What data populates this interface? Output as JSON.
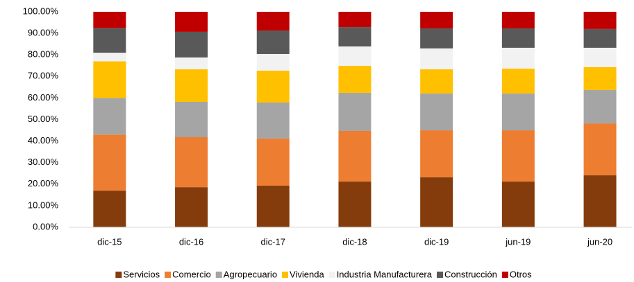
{
  "chart_data": {
    "type": "stacked_bar",
    "categories": [
      "dic-15",
      "dic-16",
      "dic-17",
      "dic-18",
      "dic-19",
      "jun-19",
      "jun-20"
    ],
    "series": [
      {
        "name": "Servicios",
        "color": "#843c0c",
        "values": [
          17,
          18.6,
          19.3,
          21.2,
          23.2,
          21.2,
          24.1
        ]
      },
      {
        "name": "Comercio",
        "color": "#ed7d31",
        "values": [
          26,
          23.2,
          21.9,
          23.5,
          21.8,
          23.8,
          24.1
        ]
      },
      {
        "name": "Agropecuario",
        "color": "#a5a5a5",
        "values": [
          17,
          16.4,
          16.7,
          17.7,
          17.1,
          17.1,
          15.5
        ]
      },
      {
        "name": "Vivienda",
        "color": "#ffc000",
        "values": [
          17,
          15.1,
          14.8,
          12.5,
          11.2,
          11.5,
          10.6
        ]
      },
      {
        "name": "Industria Manufacturera",
        "color": "#f2f2f2",
        "values": [
          4,
          5.5,
          7.7,
          9,
          9.7,
          9.7,
          9
        ]
      },
      {
        "name": "Construcción",
        "color": "#595959",
        "values": [
          11.5,
          11.9,
          10.9,
          9,
          9.3,
          9,
          8.7
        ]
      },
      {
        "name": "Otros",
        "color": "#c00000",
        "values": [
          7.5,
          9.3,
          8.7,
          7.1,
          7.7,
          7.7,
          8
        ]
      }
    ],
    "ylim": [
      0,
      100
    ],
    "yticks": [
      {
        "value": 0,
        "label": "0.00%"
      },
      {
        "value": 10,
        "label": "10.00%"
      },
      {
        "value": 20,
        "label": "20.00%"
      },
      {
        "value": 30,
        "label": "30.00%"
      },
      {
        "value": 40,
        "label": "40.00%"
      },
      {
        "value": 50,
        "label": "50.00%"
      },
      {
        "value": 60,
        "label": "60.00%"
      },
      {
        "value": 70,
        "label": "70.00%"
      },
      {
        "value": 80,
        "label": "80.00%"
      },
      {
        "value": 90,
        "label": "90.00%"
      },
      {
        "value": 100,
        "label": "100.00%"
      }
    ],
    "grid": false,
    "legend": "bottom"
  }
}
